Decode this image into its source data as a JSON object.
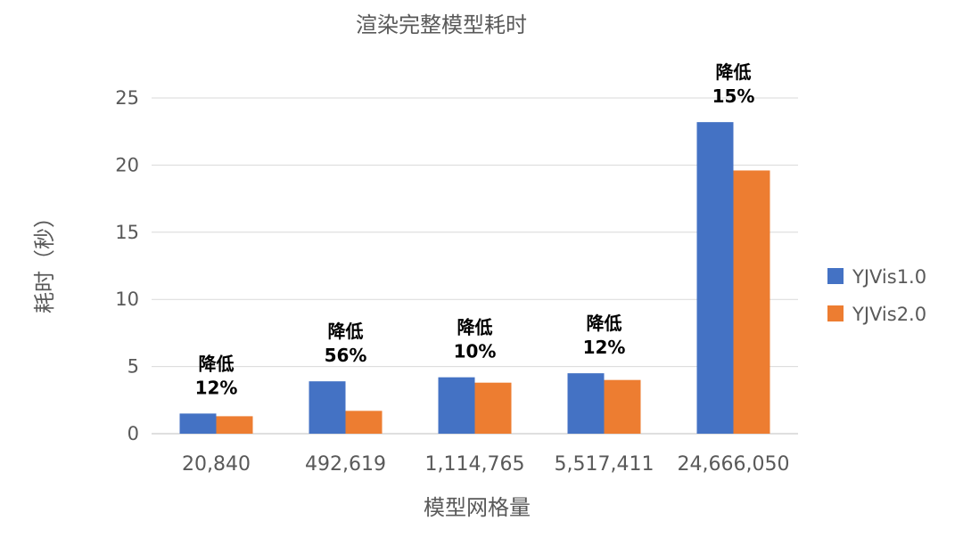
{
  "chart_data": {
    "type": "bar",
    "title": "渲染完整模型耗时",
    "xlabel": "模型网格量",
    "ylabel": "耗时（秒）",
    "ylim": [
      0,
      25
    ],
    "yticks": [
      0,
      5,
      10,
      15,
      20,
      25
    ],
    "grid": true,
    "legend_position": "right",
    "categories": [
      "20,840",
      "492,619",
      "1,114,765",
      "5,517,411",
      "24,666,050"
    ],
    "series": [
      {
        "name": "YJVis1.0",
        "color": "#4472c4",
        "values": [
          1.5,
          3.9,
          4.2,
          4.5,
          23.2
        ]
      },
      {
        "name": "YJVis2.0",
        "color": "#ed7d31",
        "values": [
          1.3,
          1.7,
          3.8,
          4.0,
          19.6
        ]
      }
    ],
    "annotations": [
      {
        "line1": "降低",
        "line2": "12%"
      },
      {
        "line1": "降低",
        "line2": "56%"
      },
      {
        "line1": "降低",
        "line2": "10%"
      },
      {
        "line1": "降低",
        "line2": "12%"
      },
      {
        "line1": "降低",
        "line2": "15%"
      }
    ]
  }
}
